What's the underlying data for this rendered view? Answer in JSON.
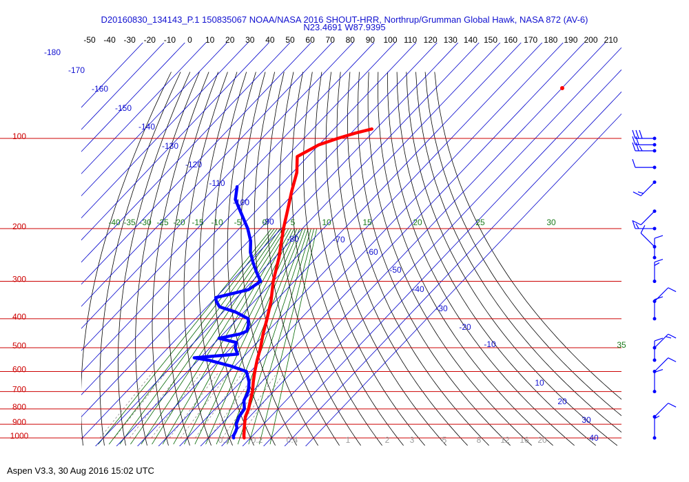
{
  "title": "D20160830_134143_P.1 150835067 NOAA/NASA 2016 SHOUT-HRR, Northrup/Grumman Global Hawk, NASA 872 (AV-6)",
  "subtitle": "N23.4691 W87.9395",
  "footer": "Aspen V3.3, 30 Aug 2016  15:02 UTC",
  "colors": {
    "temperature": "#ff0000",
    "dewpoint": "#0000ff",
    "isobar": "#cc0000",
    "isotherm": "#0000cc",
    "dry_adiabat": "#000000",
    "moist_adiabat": "#006600",
    "mixing_ratio": "#888888",
    "wind_barb": "#0000ff"
  },
  "chart_data": {
    "type": "skew-t log-p",
    "x_top_ticks": [
      "-50",
      "-40",
      "-30",
      "-20",
      "-10",
      "0",
      "10",
      "20",
      "30",
      "40",
      "50",
      "60",
      "70",
      "80",
      "90",
      "100",
      "110",
      "120",
      "130",
      "140",
      "150",
      "160",
      "170",
      "180",
      "190",
      "200",
      "210"
    ],
    "pressure_labels": [
      "100",
      "200",
      "300",
      "400",
      "500",
      "600",
      "700",
      "800",
      "900",
      "1000"
    ],
    "isotherm_labels": [
      "-180",
      "-170",
      "-160",
      "-150",
      "-140",
      "-130",
      "-120",
      "-110",
      "-100",
      "-90",
      "-80",
      "-70",
      "-60",
      "-50",
      "-40",
      "-30",
      "-20",
      "-10",
      "10",
      "20",
      "30",
      "40"
    ],
    "moist_adiabat_labels": [
      "-40",
      "-35",
      "-30",
      "-25",
      "-20",
      "-15",
      "-10",
      "-5",
      "0",
      "5",
      "10",
      "15",
      "20",
      "25",
      "30",
      "35"
    ],
    "mixing_ratio_labels": [
      "0.1",
      "0.2",
      "0.4",
      "1",
      "2",
      "3",
      "5",
      "8",
      "12",
      "16",
      "20"
    ],
    "temperature_profile": [
      [
        1000,
        27
      ],
      [
        985,
        26
      ],
      [
        950,
        24
      ],
      [
        925,
        22.5
      ],
      [
        900,
        21
      ],
      [
        850,
        18
      ],
      [
        800,
        16
      ],
      [
        750,
        13
      ],
      [
        700,
        10
      ],
      [
        650,
        6
      ],
      [
        600,
        2
      ],
      [
        550,
        -2
      ],
      [
        500,
        -6
      ],
      [
        450,
        -11
      ],
      [
        400,
        -16
      ],
      [
        350,
        -22
      ],
      [
        300,
        -30
      ],
      [
        250,
        -38
      ],
      [
        200,
        -49
      ],
      [
        175,
        -55
      ],
      [
        150,
        -62
      ],
      [
        130,
        -68
      ],
      [
        115,
        -75
      ],
      [
        105,
        -70
      ],
      [
        100,
        -64
      ],
      [
        96,
        -58
      ],
      [
        93,
        -52
      ]
    ],
    "dewpoint_profile": [
      [
        1000,
        22
      ],
      [
        985,
        21
      ],
      [
        950,
        20
      ],
      [
        925,
        19
      ],
      [
        900,
        17
      ],
      [
        850,
        15
      ],
      [
        800,
        14
      ],
      [
        750,
        10
      ],
      [
        700,
        8
      ],
      [
        650,
        4
      ],
      [
        600,
        -2
      ],
      [
        575,
        -12
      ],
      [
        550,
        -25
      ],
      [
        540,
        -33
      ],
      [
        525,
        -14
      ],
      [
        500,
        -18
      ],
      [
        480,
        -20
      ],
      [
        465,
        -30
      ],
      [
        450,
        -22
      ],
      [
        440,
        -20
      ],
      [
        420,
        -22
      ],
      [
        400,
        -25
      ],
      [
        380,
        -34
      ],
      [
        365,
        -44
      ],
      [
        350,
        -48
      ],
      [
        340,
        -50
      ],
      [
        320,
        -38
      ],
      [
        300,
        -36
      ],
      [
        280,
        -42
      ],
      [
        260,
        -48
      ],
      [
        240,
        -54
      ],
      [
        220,
        -59
      ],
      [
        200,
        -66
      ],
      [
        180,
        -75
      ],
      [
        160,
        -85
      ],
      [
        145,
        -90
      ]
    ],
    "wind_barbs": [
      [
        100,
        "W",
        30
      ],
      [
        105,
        "W",
        20
      ],
      [
        110,
        "W",
        25
      ],
      [
        125,
        "W",
        10
      ],
      [
        140,
        "SW",
        15
      ],
      [
        175,
        "SW",
        10
      ],
      [
        200,
        "W",
        15
      ],
      [
        230,
        "NW",
        10
      ],
      [
        250,
        "N",
        10
      ],
      [
        300,
        "N",
        15
      ],
      [
        350,
        "NE",
        10
      ],
      [
        400,
        "N",
        10
      ],
      [
        500,
        "NE",
        15
      ],
      [
        550,
        "N",
        10
      ],
      [
        600,
        "NE",
        10
      ],
      [
        700,
        "N",
        10
      ],
      [
        850,
        "NE",
        10
      ],
      [
        1000,
        "N",
        5
      ]
    ]
  }
}
